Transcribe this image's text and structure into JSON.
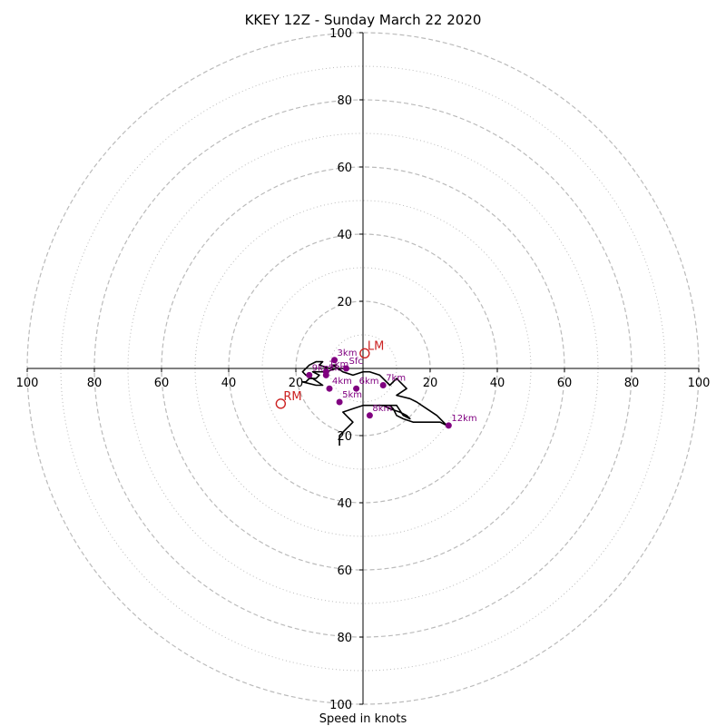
{
  "chart_data": {
    "type": "hodograph",
    "title": "KKEY 12Z - Sunday March 22 2020",
    "xlabel": "Speed in knots",
    "max_speed": 100,
    "grid": true,
    "rings_major": [
      20,
      40,
      60,
      80,
      100
    ],
    "rings_minor": [
      10,
      30,
      50,
      70,
      90
    ],
    "tick_labels_x": [
      "100",
      "80",
      "60",
      "40",
      "20",
      "20",
      "40",
      "60",
      "80",
      "100"
    ],
    "tick_values_x": [
      -100,
      -80,
      -60,
      -40,
      -20,
      20,
      40,
      60,
      80,
      100
    ],
    "tick_labels_y": [
      "100",
      "80",
      "60",
      "40",
      "20",
      "20",
      "40",
      "60",
      "80",
      "100"
    ],
    "tick_values_y": [
      100,
      80,
      60,
      40,
      20,
      -20,
      -40,
      -60,
      -80,
      -100
    ],
    "profile": {
      "u": [
        -5,
        -8,
        -11,
        -12,
        -14,
        -15,
        -13,
        -14,
        -16,
        -17,
        -18,
        -14,
        -12,
        -15,
        -17,
        -18,
        -16,
        -14,
        -12,
        -13,
        -10,
        -8,
        -9,
        -6,
        -3,
        0,
        2,
        5,
        8,
        10,
        13,
        10,
        14,
        16,
        19,
        22,
        25,
        23,
        20,
        15,
        12,
        10,
        9,
        8,
        6,
        10,
        12,
        14,
        13,
        11,
        8,
        6,
        0,
        -3,
        -6,
        -5,
        -4,
        -3,
        -4,
        -5,
        -6,
        -7,
        -7
      ],
      "v": [
        0,
        0,
        -1,
        -1,
        -1,
        -1,
        -2,
        -3,
        -3,
        -4,
        -4,
        -5,
        -5,
        -3,
        -2,
        -1,
        1,
        2,
        2,
        1,
        0,
        1,
        1,
        -1,
        -2,
        -1,
        -1,
        -2,
        -5,
        -3,
        -6,
        -8,
        -9,
        -10,
        -12,
        -14,
        -17,
        -16,
        -16,
        -16,
        -15,
        -14,
        -12,
        -11,
        -11,
        -11,
        -14,
        -15,
        -14,
        -13,
        -12,
        -11,
        -11,
        -12,
        -13,
        -14,
        -15,
        -16,
        -17,
        -18,
        -19,
        -20,
        -23
      ]
    },
    "heights": [
      {
        "label": "Sfc",
        "u": -5,
        "v": 0
      },
      {
        "label": "1km",
        "u": -11,
        "v": -1
      },
      {
        "label": "2km",
        "u": -11,
        "v": -2
      },
      {
        "label": "3km",
        "u": -8.5,
        "v": 2.5
      },
      {
        "label": "4km",
        "u": -10,
        "v": -6
      },
      {
        "label": "5km",
        "u": -7,
        "v": -10
      },
      {
        "label": "6km",
        "u": -2,
        "v": -6
      },
      {
        "label": "7km",
        "u": 6,
        "v": -5
      },
      {
        "label": "9km",
        "u": -16,
        "v": -2
      },
      {
        "label": "8km",
        "u": 2,
        "v": -14
      },
      {
        "label": "12km",
        "u": 25.5,
        "v": -17
      }
    ],
    "storm_motion": [
      {
        "label": "LM",
        "u": 0.5,
        "v": 4.5
      },
      {
        "label": "RM",
        "u": -24.5,
        "v": -10.5
      }
    ],
    "colors": {
      "profile": "#000000",
      "height_marker": "#800080",
      "storm_motion": "#cc2222",
      "grid": "#bbbbbb"
    }
  }
}
